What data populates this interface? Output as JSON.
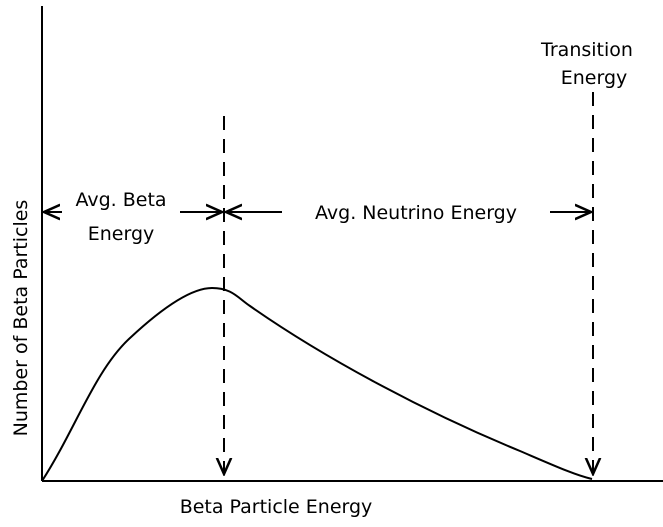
{
  "diagram": {
    "ylabel": "Number of Beta Particles",
    "xlabel": "Beta Particle Energy",
    "transition_line1": "Transition",
    "transition_line2": "Energy",
    "avg_beta_line1": "Avg. Beta",
    "avg_beta_line2": "Energy",
    "avg_neutrino": "Avg. Neutrino Energy"
  }
}
